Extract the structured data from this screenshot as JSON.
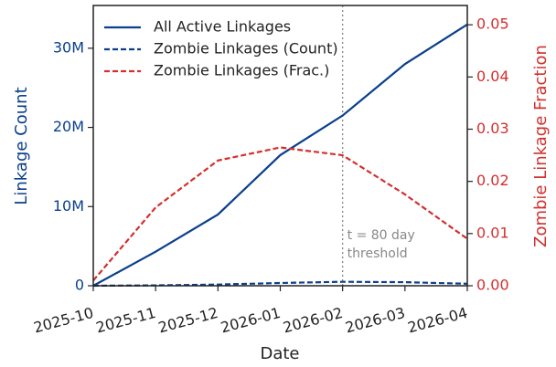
{
  "chart_data": {
    "type": "line",
    "x": [
      "2025-10",
      "2025-11",
      "2025-12",
      "2026-01",
      "2026-02",
      "2026-03",
      "2026-04"
    ],
    "xlim": [
      "2025-10",
      "2026-04"
    ],
    "xticks": [
      "2025-10",
      "2025-11",
      "2025-12",
      "2026-01",
      "2026-02",
      "2026-03",
      "2026-04"
    ],
    "xlabel": "Date",
    "ylabel": "Linkage Count",
    "y2label": "Zombie Linkage Fraction",
    "ylim": [
      0,
      35400000
    ],
    "yticks": [
      0,
      {
        "value": 10000000,
        "label": "10M"
      },
      {
        "value": 20000000,
        "label": "20M"
      },
      {
        "value": 30000000,
        "label": "30M"
      }
    ],
    "y2lim": [
      0,
      0.0537
    ],
    "y2ticks": [
      {
        "value": 0,
        "label": "0.00"
      },
      {
        "value": 0.01,
        "label": "0.01"
      },
      {
        "value": 0.02,
        "label": "0.02"
      },
      {
        "value": 0.03,
        "label": "0.03"
      },
      {
        "value": 0.04,
        "label": "0.04"
      },
      {
        "value": 0.05,
        "label": "0.05"
      }
    ],
    "y_color": "#0b3f8c",
    "y2_color": "#d2302e",
    "legend": "upper left",
    "series": [
      {
        "name": "All Active Linkages",
        "color": "#0b3f8c",
        "dash": "solid",
        "values": [
          0,
          4300000,
          9000000,
          16500000,
          21500000,
          28000000,
          33000000
        ]
      },
      {
        "name": "Zombie Linkages (Count)",
        "color": "#0b3f8c",
        "dash": "dashed",
        "values": [
          0,
          50000,
          150000,
          350000,
          500000,
          450000,
          250000
        ]
      },
      {
        "name": "Zombie Linkages (Frac.)",
        "color": "#d2302e",
        "dash": "dashed",
        "axis": "y2",
        "values": [
          0.001,
          0.015,
          0.024,
          0.0265,
          0.025,
          0.0175,
          0.009
        ]
      }
    ],
    "vline": {
      "x": "2026-02",
      "color": "#888888",
      "text": [
        "t = 80 day",
        "threshold"
      ]
    }
  }
}
